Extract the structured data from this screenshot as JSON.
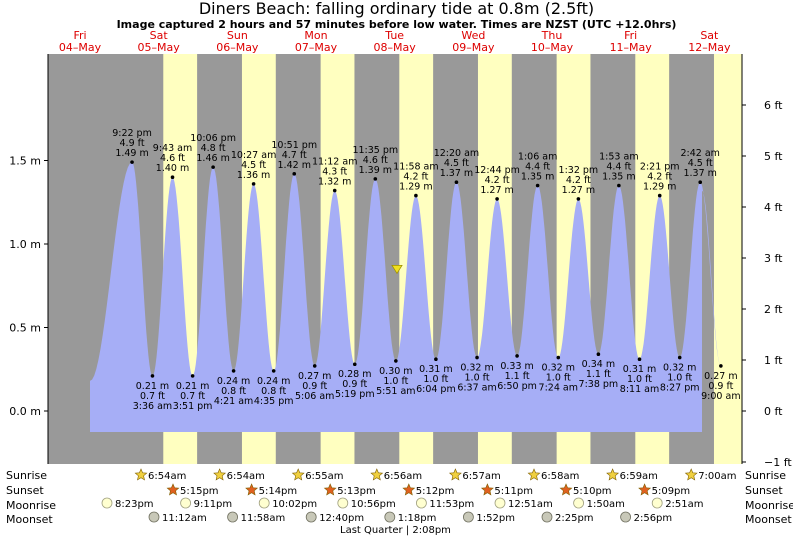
{
  "title": "Diners Beach: falling  ordinary tide at 0.8m (2.5ft)",
  "subtitle": "Image captured 2 hours and 57 minutes before low water. Times are NZST (UTC +12.0hrs)",
  "days": [
    {
      "dow": "Fri",
      "date": "04–May"
    },
    {
      "dow": "Sat",
      "date": "05–May"
    },
    {
      "dow": "Sun",
      "date": "06–May"
    },
    {
      "dow": "Mon",
      "date": "07–May"
    },
    {
      "dow": "Tue",
      "date": "08–May"
    },
    {
      "dow": "Wed",
      "date": "09–May"
    },
    {
      "dow": "Thu",
      "date": "10–May"
    },
    {
      "dow": "Fri",
      "date": "11–May"
    },
    {
      "dow": "Sat",
      "date": "12–May"
    }
  ],
  "chart_data": {
    "type": "area",
    "title": "Diners Beach: falling  ordinary tide at 0.8m (2.5ft)",
    "y_left_unit": "m",
    "y_right_unit": "ft",
    "ylim_m": [
      -0.3,
      1.92
    ],
    "y_left_ticks": [
      "0.0 m",
      "0.5 m",
      "1.0 m",
      "1.5 m"
    ],
    "y_left_values": [
      0.0,
      0.5,
      1.0,
      1.5
    ],
    "y_right_ticks": [
      "−1 ft",
      "0 ft",
      "1 ft",
      "2 ft",
      "3 ft",
      "4 ft",
      "5 ft",
      "6 ft"
    ],
    "y_right_values": [
      -1,
      0,
      1,
      2,
      3,
      4,
      5,
      6
    ],
    "current_tide_m": 0.8,
    "tides": [
      {
        "time": "9:22 pm",
        "m": "1.49",
        "ft": "4.9",
        "kind": "high",
        "v": 1.49
      },
      {
        "time": "3:36 am",
        "m": "0.21",
        "ft": "0.7",
        "kind": "low",
        "v": 0.21
      },
      {
        "time": "9:43 am",
        "m": "1.40",
        "ft": "4.6",
        "kind": "high",
        "v": 1.4
      },
      {
        "time": "3:51 pm",
        "m": "0.21",
        "ft": "0.7",
        "kind": "low",
        "v": 0.21
      },
      {
        "time": "10:06 pm",
        "m": "1.46",
        "ft": "4.8",
        "kind": "high",
        "v": 1.46
      },
      {
        "time": "4:21 am",
        "m": "0.24",
        "ft": "0.8",
        "kind": "low",
        "v": 0.24
      },
      {
        "time": "10:27 am",
        "m": "1.36",
        "ft": "4.5",
        "kind": "high",
        "v": 1.36
      },
      {
        "time": "4:35 pm",
        "m": "0.24",
        "ft": "0.8",
        "kind": "low",
        "v": 0.24
      },
      {
        "time": "10:51 pm",
        "m": "1.42",
        "ft": "4.7",
        "kind": "high",
        "v": 1.42
      },
      {
        "time": "5:06 am",
        "m": "0.27",
        "ft": "0.9",
        "kind": "low",
        "v": 0.27
      },
      {
        "time": "11:12 am",
        "m": "1.32",
        "ft": "4.3",
        "kind": "high",
        "v": 1.32
      },
      {
        "time": "5:19 pm",
        "m": "0.28",
        "ft": "0.9",
        "kind": "low",
        "v": 0.28
      },
      {
        "time": "11:35 pm",
        "m": "1.39",
        "ft": "4.6",
        "kind": "high",
        "v": 1.39
      },
      {
        "time": "5:51 am",
        "m": "0.30 m",
        "ft": "1.0 ft",
        "kind": "low",
        "v": 0.3
      },
      {
        "time": "11:58 am",
        "m": "1.29",
        "ft": "4.2",
        "kind": "high",
        "v": 1.29
      },
      {
        "time": "6:04 pm",
        "m": "0.31 m",
        "ft": "1.0 ft",
        "kind": "low",
        "v": 0.31
      },
      {
        "time": "12:20 am",
        "m": "1.37",
        "ft": "4.5",
        "kind": "high",
        "v": 1.37
      },
      {
        "time": "6:37 am",
        "m": "0.32 m",
        "ft": "1.0 ft",
        "kind": "low",
        "v": 0.32
      },
      {
        "time": "12:44 pm",
        "m": "1.27",
        "ft": "4.2",
        "kind": "high",
        "v": 1.27
      },
      {
        "time": "6:50 pm",
        "m": "0.33 m",
        "ft": "1.1 ft",
        "kind": "low",
        "v": 0.33
      },
      {
        "time": "1:06 am",
        "m": "1.35",
        "ft": "4.4",
        "kind": "high",
        "v": 1.35
      },
      {
        "time": "7:24 am",
        "m": "0.32 m",
        "ft": "1.0 ft",
        "kind": "low",
        "v": 0.32
      },
      {
        "time": "1:32 pm",
        "m": "1.27",
        "ft": "4.2",
        "kind": "high",
        "v": 1.27
      },
      {
        "time": "7:38 pm",
        "m": "0.34 m",
        "ft": "1.1 ft",
        "kind": "low",
        "v": 0.34
      },
      {
        "time": "1:53 am",
        "m": "1.35",
        "ft": "4.4",
        "kind": "high",
        "v": 1.35
      },
      {
        "time": "8:11 am",
        "m": "0.31 m",
        "ft": "1.0 ft",
        "kind": "low",
        "v": 0.31
      },
      {
        "time": "2:21 pm",
        "m": "1.29",
        "ft": "4.2",
        "kind": "high",
        "v": 1.29
      },
      {
        "time": "8:27 pm",
        "m": "0.32 m",
        "ft": "1.0 ft",
        "kind": "low",
        "v": 0.32
      },
      {
        "time": "2:42 am",
        "m": "1.37",
        "ft": "4.5",
        "kind": "high",
        "v": 1.37
      },
      {
        "time": "9:00 am",
        "m": "0.27 m",
        "ft": "0.9 ft",
        "kind": "low",
        "v": 0.27
      }
    ]
  },
  "rows": {
    "sunrise": "Sunrise",
    "sunset": "Sunset",
    "moonrise": "Moonrise",
    "moonset": "Moonset"
  },
  "sunrise": [
    "6:54am",
    "6:54am",
    "6:55am",
    "6:56am",
    "6:57am",
    "6:58am",
    "6:59am",
    "7:00am"
  ],
  "sunset": [
    "5:15pm",
    "5:14pm",
    "5:13pm",
    "5:12pm",
    "5:11pm",
    "5:10pm",
    "5:09pm"
  ],
  "moonrise": [
    "8:23pm",
    "9:11pm",
    "10:02pm",
    "10:56pm",
    "11:53pm",
    "12:51am",
    "1:50am",
    "2:51am"
  ],
  "moonset": [
    "11:12am",
    "11:58am",
    "12:40pm",
    "1:18pm",
    "1:52pm",
    "2:25pm",
    "2:56pm"
  ],
  "moon_phase": "Last Quarter | 2:08pm",
  "colors": {
    "night": "#999999",
    "day": "#ffffc0",
    "water": "#a6aef6",
    "date_red": "#dd0000",
    "sun_yellow": "#f0d040",
    "sun_orange": "#e06020",
    "moon_light": "#ffffd0",
    "moon_grey": "#c8c8b8"
  }
}
